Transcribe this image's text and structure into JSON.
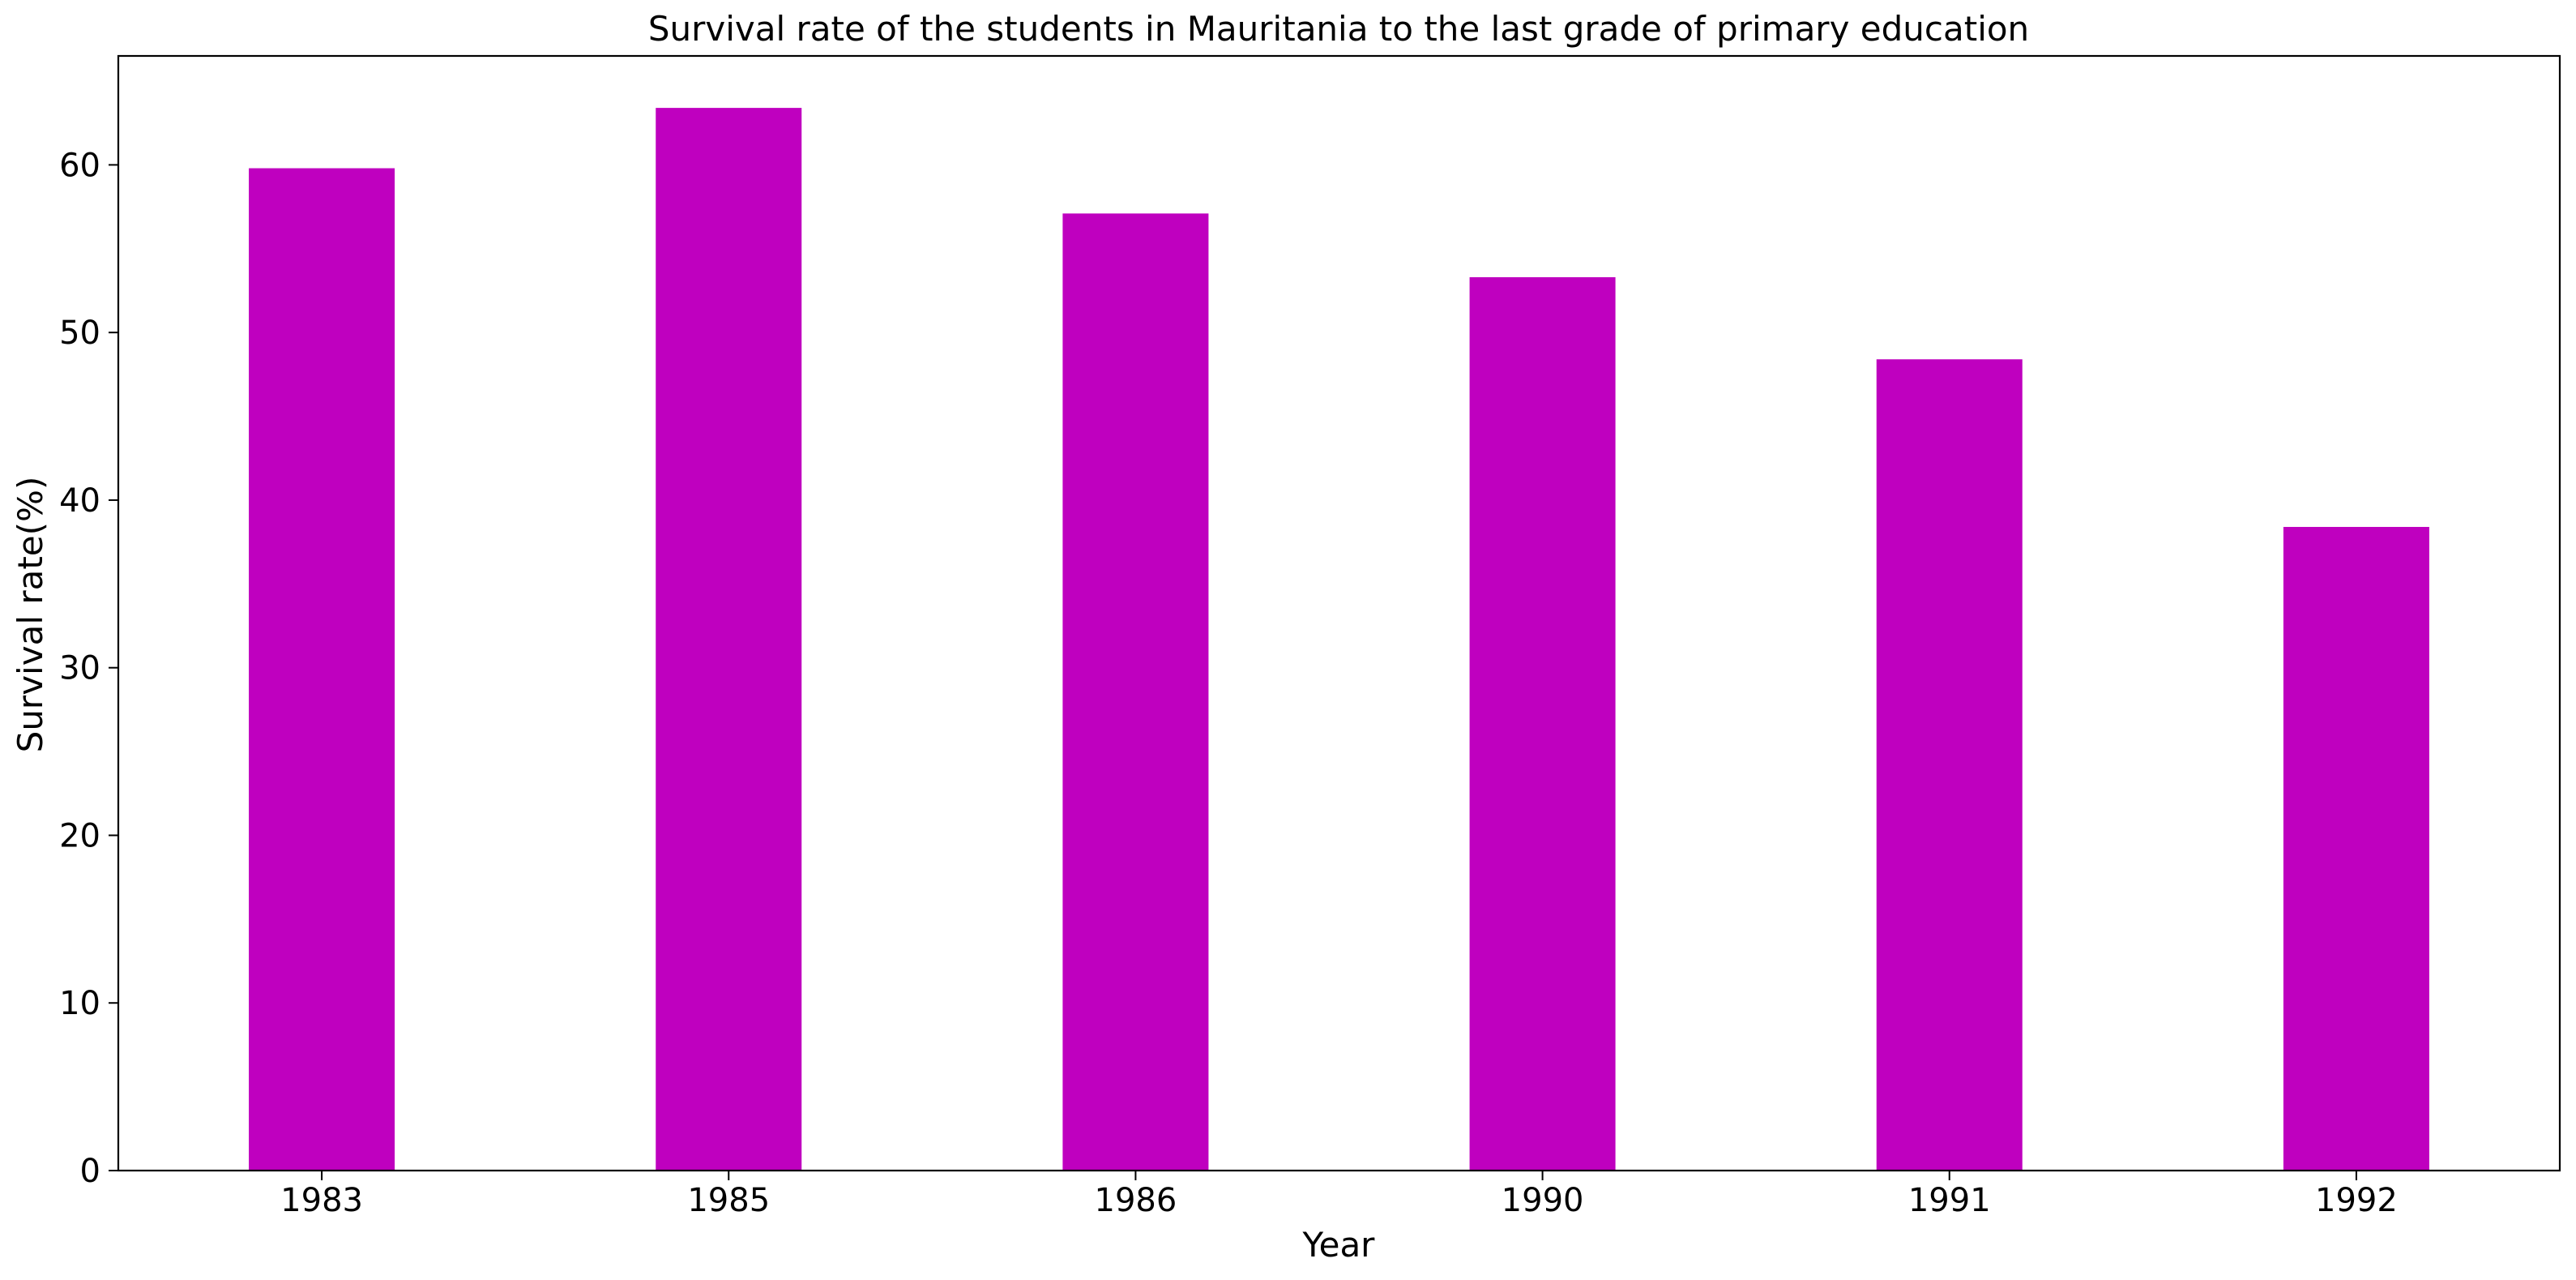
{
  "chart_data": {
    "type": "bar",
    "title": "Survival rate of the students in Mauritania to the last grade of primary education",
    "xlabel": "Year",
    "ylabel": "Survival rate(%)",
    "categories": [
      "1983",
      "1985",
      "1986",
      "1990",
      "1991",
      "1992"
    ],
    "values": [
      59.8,
      63.4,
      57.1,
      53.3,
      48.4,
      38.4
    ],
    "ylim": [
      0,
      66.5
    ],
    "yticks": [
      0,
      10,
      20,
      30,
      40,
      50,
      60
    ],
    "bar_color": "#bf00bf",
    "grid": false,
    "legend": false
  }
}
